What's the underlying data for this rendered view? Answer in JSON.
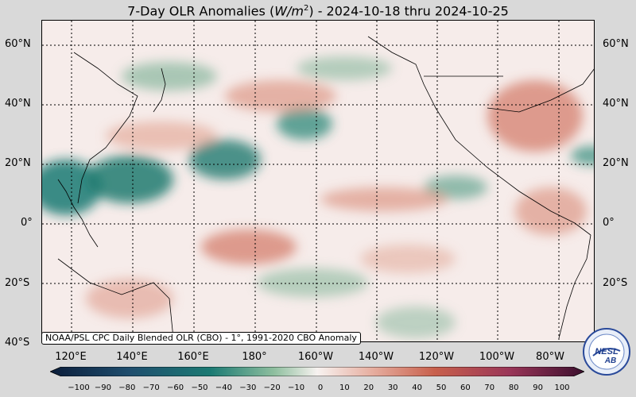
{
  "title_prefix": "7-Day OLR Anomalies (",
  "title_units": "W/m",
  "title_units_sup": "2",
  "title_suffix": ") - 2024-10-18 thru 2024-10-25",
  "latitude_labels": [
    "60°N",
    "40°N",
    "20°N",
    "0°",
    "20°S",
    "40°S"
  ],
  "longitude_labels": [
    "120°E",
    "140°E",
    "160°E",
    "180°",
    "160°W",
    "140°W",
    "120°W",
    "100°W",
    "80°W"
  ],
  "credit_text": "NOAA/PSL CPC Daily Blended OLR (CBO) - 1°, 1991-2020 CBO Anomaly",
  "colorbar_ticks": [
    "−100",
    "−90",
    "−80",
    "−70",
    "−60",
    "−50",
    "−40",
    "−30",
    "−20",
    "−10",
    "0",
    "10",
    "20",
    "30",
    "40",
    "50",
    "60",
    "70",
    "80",
    "90",
    "100"
  ],
  "colors": {
    "negative": "#0e6b66",
    "positive": "#c0523f",
    "neutral": "#f6ecea"
  },
  "logo_text": "NESL AB"
}
